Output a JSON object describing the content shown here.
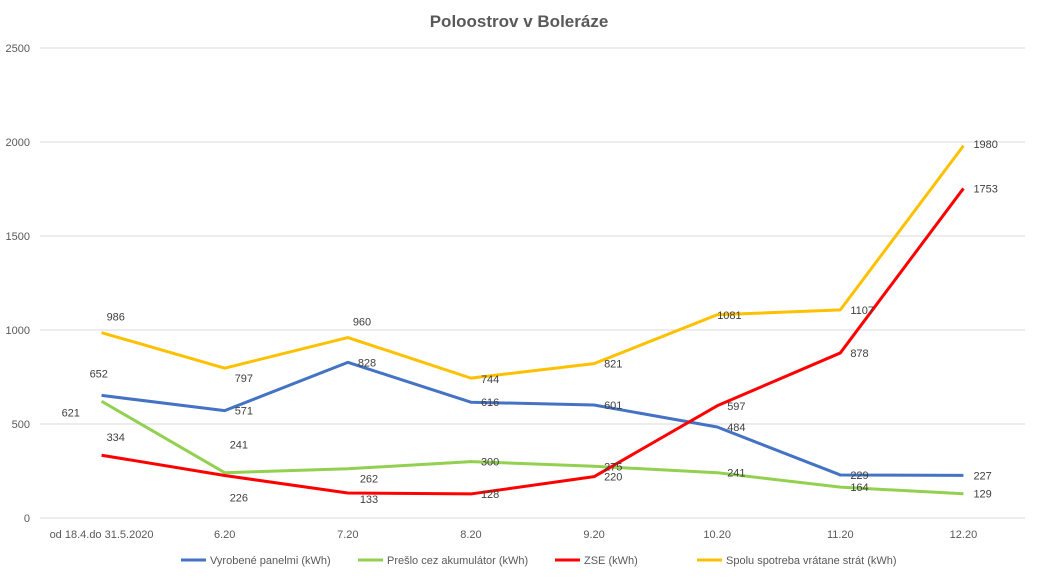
{
  "chart_data": {
    "type": "line",
    "title": "Poloostrov v Boleráze",
    "xlabel": "",
    "ylabel": "",
    "ylim": [
      0,
      2500
    ],
    "yticks": [
      "0",
      "500",
      "1000",
      "1500",
      "2000",
      "2500"
    ],
    "grid": true,
    "legend_position": "bottom",
    "categories": [
      "od 18.4.do 31.5.2020",
      "6.20",
      "7.20",
      "8.20",
      "9.20",
      "10.20",
      "11.20",
      "12.20"
    ],
    "series": [
      {
        "name": "Vyrobené panelmi (kWh)",
        "color": "#4472C4",
        "values": [
          652,
          571,
          828,
          616,
          601,
          484,
          229,
          227
        ]
      },
      {
        "name": "Prešlo cez akumulátor (kWh)",
        "color": "#92D050",
        "values": [
          621,
          241,
          262,
          300,
          275,
          241,
          164,
          129
        ]
      },
      {
        "name": "ZSE (kWh)",
        "color": "#FF0000",
        "values": [
          334,
          226,
          133,
          128,
          220,
          597,
          878,
          1753
        ]
      },
      {
        "name": "Spolu spotreba vrátane strát (kWh)",
        "color": "#FFC000",
        "values": [
          986,
          797,
          960,
          744,
          821,
          1081,
          1107,
          1980
        ]
      }
    ]
  }
}
